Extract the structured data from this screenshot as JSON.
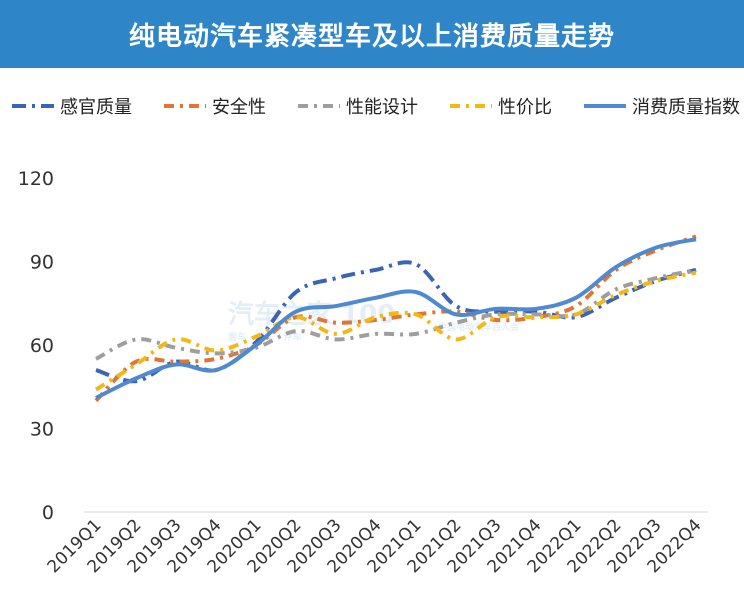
{
  "title": "纯电动汽车紧凑型车及以上消费质量走势",
  "watermark": {
    "brand": "汽车之家 100",
    "line1": "看车 · 用车 · 评车",
    "line2": "中国电动汽车百人会"
  },
  "legend": [
    {
      "label": "感官质量",
      "color": "#3a64b4",
      "dash": "14,6,3,6"
    },
    {
      "label": "安全性",
      "color": "#e07534",
      "dash": "10,6,3,6"
    },
    {
      "label": "性能设计",
      "color": "#9e9e9e",
      "dash": "10,6,3,6"
    },
    {
      "label": "性价比",
      "color": "#f3b716",
      "dash": "10,6,3,6"
    },
    {
      "label": "消费质量指数",
      "color": "#4f89cf",
      "dash": ""
    }
  ],
  "chart_data": {
    "type": "line",
    "title": "纯电动汽车紧凑型车及以上消费质量走势",
    "xlabel": "",
    "ylabel": "",
    "ylim": [
      0,
      120
    ],
    "yticks": [
      "0",
      "30",
      "60",
      "90",
      "120"
    ],
    "grid": false,
    "legend_position": "top",
    "categories": [
      "2019Q1",
      "2019Q2",
      "2019Q3",
      "2019Q4",
      "2020Q1",
      "2020Q2",
      "2020Q3",
      "2020Q4",
      "2021Q1",
      "2021Q2",
      "2021Q3",
      "2021Q4",
      "2022Q1",
      "2022Q2",
      "2022Q3",
      "2022Q4"
    ],
    "series": [
      {
        "name": "感官质量",
        "color": "#3a64b4",
        "dash": "14,6,3,6",
        "width": 4,
        "values": [
          51,
          47,
          54,
          51,
          61,
          79,
          84,
          87,
          89,
          74,
          72,
          72,
          70,
          77,
          83,
          87
        ]
      },
      {
        "name": "安全性",
        "color": "#e07534",
        "dash": "10,6,3,6",
        "width": 4,
        "values": [
          40,
          54,
          54,
          55,
          60,
          70,
          68,
          69,
          71,
          72,
          69,
          70,
          74,
          87,
          94,
          99
        ]
      },
      {
        "name": "性能设计",
        "color": "#9e9e9e",
        "dash": "10,6,3,6",
        "width": 4,
        "values": [
          55,
          62,
          59,
          57,
          59,
          65,
          62,
          64,
          64,
          68,
          71,
          71,
          71,
          80,
          84,
          87
        ]
      },
      {
        "name": "性价比",
        "color": "#f3b716",
        "dash": "10,6,3,6",
        "width": 4,
        "values": [
          44,
          53,
          62,
          58,
          63,
          70,
          64,
          70,
          71,
          62,
          70,
          70,
          71,
          78,
          83,
          86
        ]
      },
      {
        "name": "消费质量指数",
        "color": "#4f89cf",
        "dash": "",
        "width": 4,
        "values": [
          41,
          48,
          53,
          51,
          60,
          72,
          74,
          77,
          79,
          71,
          73,
          73,
          77,
          88,
          95,
          98
        ]
      }
    ]
  }
}
